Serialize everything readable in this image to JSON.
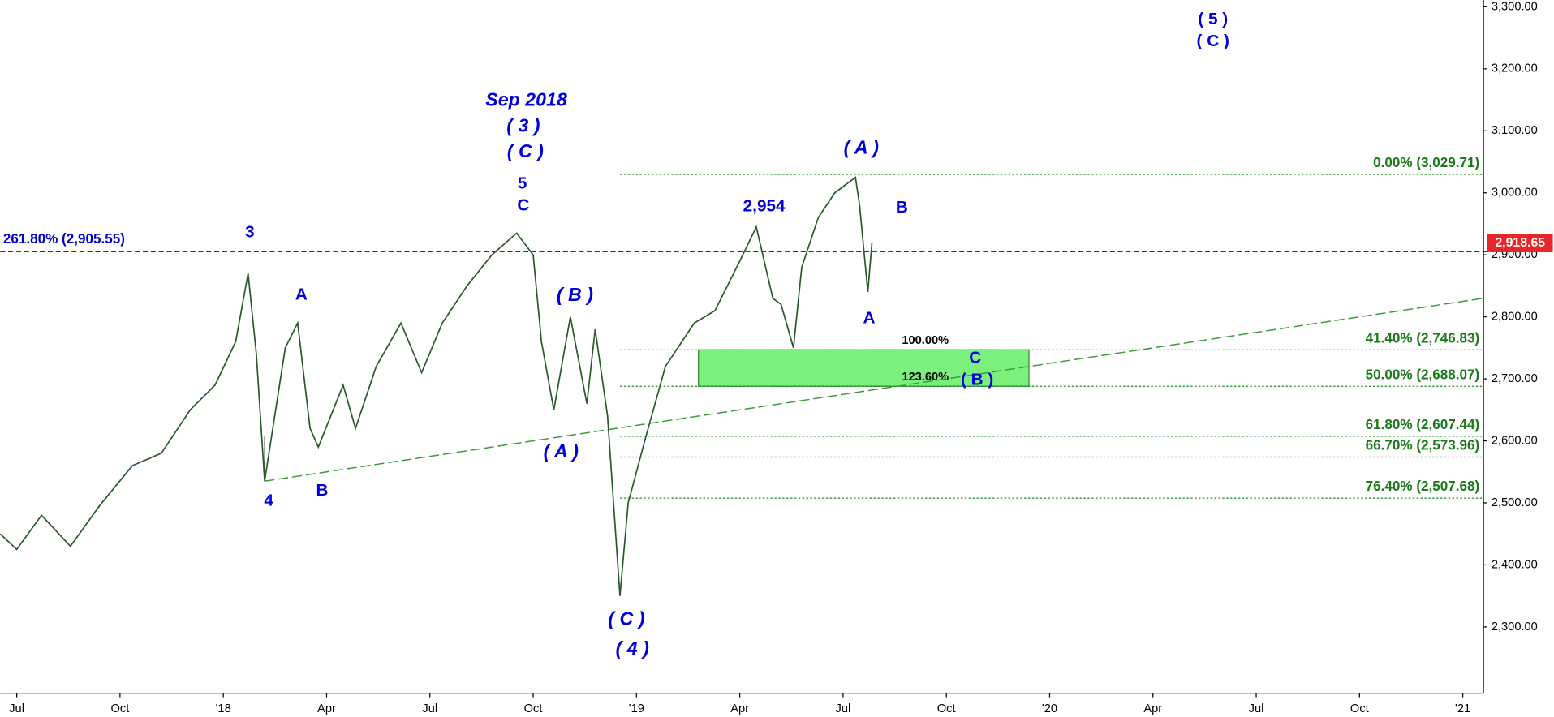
{
  "chart_data": {
    "type": "line",
    "x": [
      2017.46,
      2017.5,
      2017.56,
      2017.63,
      2017.7,
      2017.78,
      2017.85,
      2017.92,
      2017.98,
      2018.03,
      2018.06,
      2018.08,
      2018.1,
      2018.15,
      2018.18,
      2018.21,
      2018.23,
      2018.29,
      2018.32,
      2018.37,
      2018.43,
      2018.48,
      2018.53,
      2018.59,
      2018.65,
      2018.71,
      2018.75,
      2018.77,
      2018.8,
      2018.84,
      2018.88,
      2018.9,
      2018.93,
      2018.96,
      2018.98,
      2019.02,
      2019.07,
      2019.14,
      2019.19,
      2019.25,
      2019.29,
      2019.33,
      2019.35,
      2019.38,
      2019.4,
      2019.44,
      2019.48,
      2019.53,
      2019.54,
      2019.56,
      2019.57
    ],
    "series": [
      {
        "color": "#2a5a2a",
        "values": [
          2450,
          2425,
          2480,
          2430,
          2495,
          2560,
          2580,
          2650,
          2690,
          2760,
          2870,
          2740,
          2535,
          2750,
          2790,
          2620,
          2590,
          2690,
          2620,
          2720,
          2790,
          2710,
          2790,
          2850,
          2900,
          2935,
          2900,
          2760,
          2650,
          2800,
          2660,
          2780,
          2640,
          2350,
          2500,
          2600,
          2720,
          2790,
          2810,
          2890,
          2945,
          2830,
          2820,
          2750,
          2880,
          2960,
          3000,
          3025,
          2980,
          2840,
          2920
        ]
      }
    ],
    "xlim": [
      2017.46,
      2021.05
    ],
    "xticks": [
      {
        "value": 2017.5,
        "label": "Jul"
      },
      {
        "value": 2017.75,
        "label": "Oct"
      },
      {
        "value": 2018.0,
        "label": "'18"
      },
      {
        "value": 2018.25,
        "label": "Apr"
      },
      {
        "value": 2018.5,
        "label": "Jul"
      },
      {
        "value": 2018.75,
        "label": "Oct"
      },
      {
        "value": 2019.0,
        "label": "'19"
      },
      {
        "value": 2019.25,
        "label": "Apr"
      },
      {
        "value": 2019.5,
        "label": "Jul"
      },
      {
        "value": 2019.75,
        "label": "Oct"
      },
      {
        "value": 2020.0,
        "label": "'20"
      },
      {
        "value": 2020.25,
        "label": "Apr"
      },
      {
        "value": 2020.5,
        "label": "Jul"
      },
      {
        "value": 2020.75,
        "label": "Oct"
      },
      {
        "value": 2021.0,
        "label": "'21"
      }
    ],
    "ylim": [
      2193,
      3311
    ],
    "yticks": [
      {
        "value": 2300,
        "label": "2,300.00"
      },
      {
        "value": 2400,
        "label": "2,400.00"
      },
      {
        "value": 2500,
        "label": "2,500.00"
      },
      {
        "value": 2600,
        "label": "2,600.00"
      },
      {
        "value": 2700,
        "label": "2,700.00"
      },
      {
        "value": 2800,
        "label": "2,800.00"
      },
      {
        "value": 2900,
        "label": "2,900.00"
      },
      {
        "value": 3000,
        "label": "3,000.00"
      },
      {
        "value": 3100,
        "label": "3,100.00"
      },
      {
        "value": 3200,
        "label": "3,200.00"
      },
      {
        "value": 3300,
        "label": "3,300.00"
      }
    ],
    "last_price": {
      "value": 2918.65,
      "label": "2,918.65",
      "color": "#e8252a"
    },
    "extension_level": {
      "value": 2905.55,
      "label": "261.80% (2,905.55)",
      "color": "#0000cc"
    },
    "fib_start": 2018.96,
    "fib_levels": [
      {
        "value": 3029.71,
        "label": "0.00% (3,029.71)"
      },
      {
        "value": 2746.83,
        "label": "41.40% (2,746.83)"
      },
      {
        "value": 2688.07,
        "label": "50.00% (2,688.07)"
      },
      {
        "value": 2607.44,
        "label": "61.80% (2,607.44)"
      },
      {
        "value": 2573.96,
        "label": "66.70% (2,573.96)"
      },
      {
        "value": 2507.68,
        "label": "76.40% (2,507.68)"
      }
    ],
    "fib_color": "#1a8a1a",
    "zone": {
      "x": [
        2019.15,
        2019.95
      ],
      "values": [
        2746.83,
        2688.07
      ],
      "color": "#7cf07c",
      "labels": [
        "100.00%",
        "123.60%"
      ]
    },
    "trendline": {
      "x": [
        2018.1,
        2021.05
      ],
      "values": [
        2535,
        2830
      ],
      "color": "#3a9a3a"
    },
    "annotations": [
      "Sep 2018",
      "( 3 )",
      "( C )",
      "5",
      "C",
      "3",
      "A",
      "B",
      "4",
      "( B )",
      "( A )",
      "( C )",
      "( 4 )",
      "2,954",
      "( A )",
      "B",
      "A",
      "C",
      "( B )",
      "( 5 )",
      "( C )"
    ]
  }
}
